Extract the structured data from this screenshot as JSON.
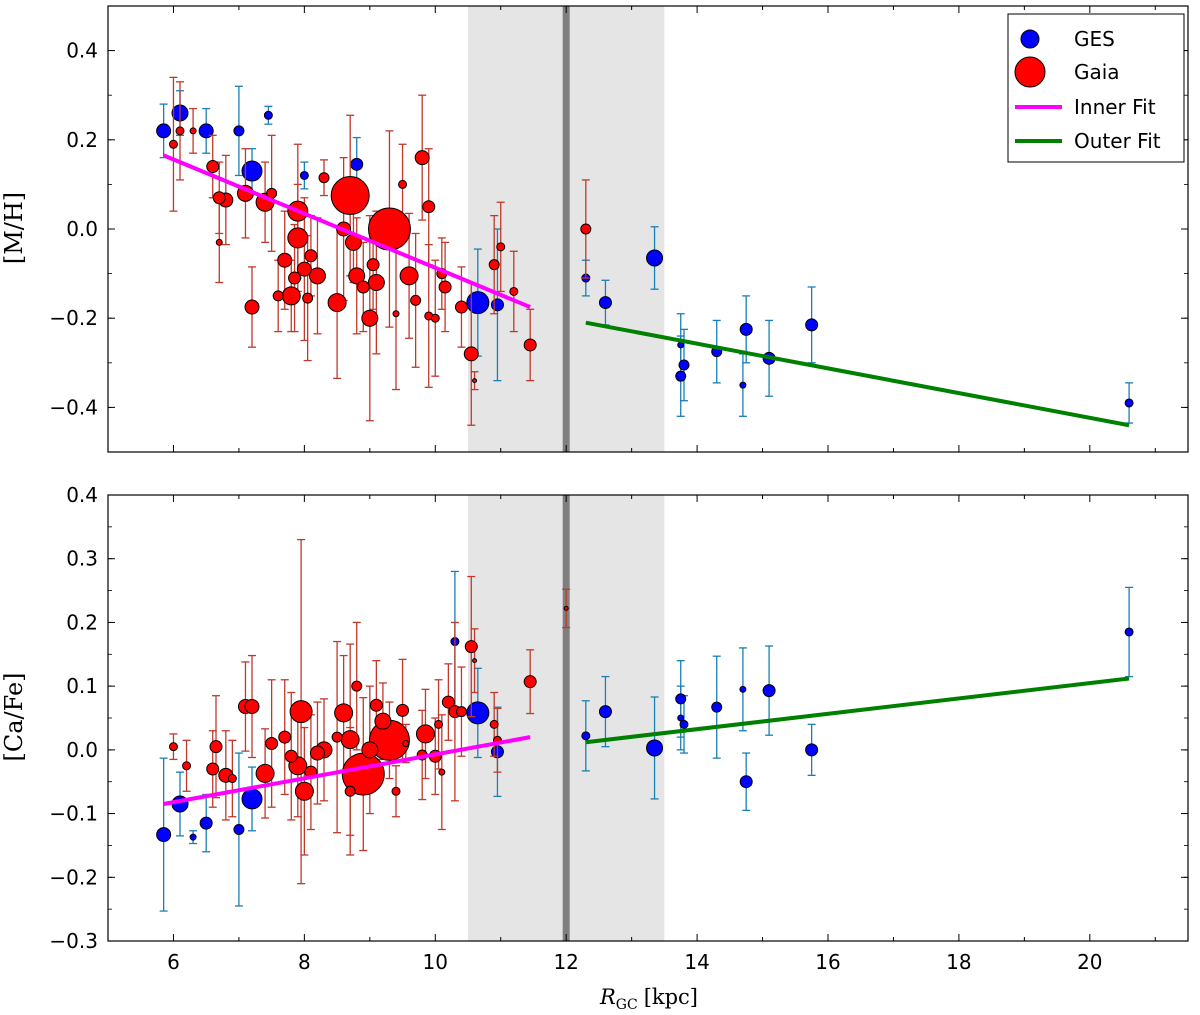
{
  "chart_data": {
    "type": "scatter",
    "xlabel": "R",
    "xlabel_subscript": "GC",
    "xlabel_unit": "[kpc]",
    "xlim": [
      5,
      21.5
    ],
    "xticks": [
      6,
      8,
      10,
      12,
      14,
      16,
      18,
      20
    ],
    "grid": false,
    "legend": {
      "placement": "top-right of upper panel",
      "entries": [
        {
          "label": "GES",
          "kind": "marker",
          "color": "#0000ff"
        },
        {
          "label": "Gaia",
          "kind": "marker",
          "color": "#ff0000"
        },
        {
          "label": "Inner Fit",
          "kind": "line",
          "color": "#ff00ff"
        },
        {
          "label": "Outer Fit",
          "kind": "line",
          "color": "#008000"
        }
      ]
    },
    "shaded_region": {
      "x": [
        10.5,
        13.5
      ],
      "color": "#e5e5e5"
    },
    "vertical_line": {
      "x": 12.0,
      "color": "#7f7f7f"
    },
    "panels": [
      {
        "ylabel": "[M/H]",
        "ylim": [
          -0.5,
          0.5
        ],
        "yticks": [
          -0.4,
          -0.2,
          0.0,
          0.2,
          0.4
        ],
        "ytick_labels": [
          "−0.4",
          "−0.2",
          "0.0",
          "0.2",
          "0.4"
        ],
        "inner_fit": {
          "x": [
            5.85,
            11.45
          ],
          "y": [
            0.165,
            -0.175
          ],
          "color": "#ff00ff"
        },
        "outer_fit": {
          "x": [
            12.3,
            20.6
          ],
          "y": [
            -0.21,
            -0.44
          ],
          "color": "#008000"
        },
        "series": [
          {
            "name": "GES",
            "color": "#0000ff",
            "errcolor": "#1a7fb5",
            "points": [
              [
                5.85,
                0.22,
                0.06,
                7
              ],
              [
                6.1,
                0.26,
                0.05,
                8
              ],
              [
                6.5,
                0.22,
                0.05,
                7
              ],
              [
                7.0,
                0.22,
                0.1,
                5
              ],
              [
                7.2,
                0.13,
                0.05,
                10
              ],
              [
                7.45,
                0.255,
                0.02,
                4
              ],
              [
                8.0,
                0.12,
                0.03,
                4
              ],
              [
                8.8,
                0.145,
                0.06,
                6
              ],
              [
                10.65,
                -0.165,
                0.12,
                11
              ],
              [
                10.95,
                -0.17,
                0.17,
                6
              ],
              [
                12.3,
                -0.11,
                0.04,
                4
              ],
              [
                12.6,
                -0.165,
                0.05,
                6
              ],
              [
                13.35,
                -0.065,
                0.07,
                8
              ],
              [
                13.75,
                -0.26,
                0.07,
                3
              ],
              [
                13.75,
                -0.33,
                0.09,
                5
              ],
              [
                13.8,
                -0.305,
                0.08,
                5
              ],
              [
                14.3,
                -0.275,
                0.07,
                5
              ],
              [
                14.7,
                -0.35,
                0.07,
                3
              ],
              [
                14.75,
                -0.225,
                0.075,
                6
              ],
              [
                15.1,
                -0.29,
                0.085,
                6
              ],
              [
                15.75,
                -0.215,
                0.085,
                6
              ],
              [
                20.6,
                -0.39,
                0.045,
                4
              ]
            ]
          },
          {
            "name": "Gaia",
            "color": "#ff0000",
            "errcolor": "#c0392b",
            "points": [
              [
                6.0,
                0.19,
                0.15,
                4
              ],
              [
                6.1,
                0.22,
                0.11,
                4
              ],
              [
                6.3,
                0.22,
                0.05,
                3
              ],
              [
                6.6,
                0.14,
                0.07,
                6
              ],
              [
                6.7,
                0.07,
                0.08,
                6
              ],
              [
                6.7,
                -0.03,
                0.09,
                3
              ],
              [
                6.8,
                0.065,
                0.1,
                7
              ],
              [
                7.1,
                0.08,
                0.1,
                8
              ],
              [
                7.2,
                -0.175,
                0.09,
                7
              ],
              [
                7.4,
                0.06,
                0.09,
                9
              ],
              [
                7.5,
                0.08,
                0.13,
                5
              ],
              [
                7.6,
                -0.15,
                0.08,
                5
              ],
              [
                7.7,
                -0.07,
                0.11,
                7
              ],
              [
                7.8,
                -0.15,
                0.08,
                9
              ],
              [
                7.85,
                -0.11,
                0.12,
                6
              ],
              [
                7.9,
                0.04,
                0.15,
                10
              ],
              [
                7.9,
                -0.02,
                0.12,
                10
              ],
              [
                8.0,
                -0.09,
                0.16,
                7
              ],
              [
                8.05,
                -0.155,
                0.14,
                5
              ],
              [
                8.1,
                -0.06,
                0.09,
                6
              ],
              [
                8.2,
                -0.105,
                0.13,
                8
              ],
              [
                8.3,
                0.115,
                0.04,
                5
              ],
              [
                8.5,
                -0.165,
                0.17,
                9
              ],
              [
                8.6,
                0.0,
                0.16,
                7
              ],
              [
                8.7,
                0.075,
                0.18,
                19
              ],
              [
                8.75,
                -0.03,
                0.09,
                8
              ],
              [
                8.8,
                -0.105,
                0.13,
                8
              ],
              [
                8.9,
                -0.13,
                0.1,
                6
              ],
              [
                9.0,
                -0.2,
                0.23,
                8
              ],
              [
                9.05,
                -0.08,
                0.1,
                6
              ],
              [
                9.1,
                -0.12,
                0.16,
                8
              ],
              [
                9.3,
                0.0,
                0.22,
                21
              ],
              [
                9.4,
                -0.19,
                0.17,
                3
              ],
              [
                9.5,
                0.1,
                0.09,
                4
              ],
              [
                9.6,
                -0.105,
                0.14,
                9
              ],
              [
                9.7,
                -0.16,
                0.15,
                5
              ],
              [
                9.8,
                0.16,
                0.14,
                7
              ],
              [
                9.9,
                0.05,
                0.13,
                6
              ],
              [
                9.9,
                -0.195,
                0.16,
                4
              ],
              [
                10.0,
                -0.2,
                0.13,
                4
              ],
              [
                10.1,
                -0.1,
                0.08,
                5
              ],
              [
                10.15,
                -0.13,
                0.1,
                6
              ],
              [
                10.4,
                -0.175,
                0.09,
                6
              ],
              [
                10.55,
                -0.28,
                0.16,
                7
              ],
              [
                10.6,
                -0.34,
                0.02,
                2
              ],
              [
                10.9,
                -0.08,
                0.11,
                5
              ],
              [
                11.0,
                -0.04,
                0.1,
                4
              ],
              [
                11.2,
                -0.14,
                0.09,
                4
              ],
              [
                11.45,
                -0.26,
                0.08,
                6
              ],
              [
                12.3,
                0.0,
                0.11,
                5
              ]
            ]
          }
        ]
      },
      {
        "ylabel": "[Ca/Fe]",
        "ylim": [
          -0.3,
          0.4
        ],
        "yticks": [
          -0.3,
          -0.2,
          -0.1,
          0.0,
          0.1,
          0.2,
          0.3,
          0.4
        ],
        "ytick_labels": [
          "−0.3",
          "−0.2",
          "−0.1",
          "0.0",
          "0.1",
          "0.2",
          "0.3",
          "0.4"
        ],
        "inner_fit": {
          "x": [
            5.85,
            11.45
          ],
          "y": [
            -0.085,
            0.02
          ],
          "color": "#ff00ff"
        },
        "outer_fit": {
          "x": [
            12.3,
            20.6
          ],
          "y": [
            0.012,
            0.112
          ],
          "color": "#008000"
        },
        "series": [
          {
            "name": "GES",
            "color": "#0000ff",
            "errcolor": "#1a7fb5",
            "points": [
              [
                5.85,
                -0.133,
                0.12,
                7
              ],
              [
                6.1,
                -0.085,
                0.05,
                8
              ],
              [
                6.3,
                -0.137,
                0.01,
                3
              ],
              [
                6.5,
                -0.115,
                0.045,
                6
              ],
              [
                7.0,
                -0.125,
                0.12,
                5
              ],
              [
                7.2,
                -0.077,
                0.05,
                10
              ],
              [
                10.3,
                0.17,
                0.11,
                4
              ],
              [
                10.65,
                0.058,
                0.07,
                11
              ],
              [
                10.95,
                -0.003,
                0.07,
                6
              ],
              [
                12.3,
                0.022,
                0.055,
                4
              ],
              [
                12.6,
                0.06,
                0.055,
                6
              ],
              [
                13.35,
                0.003,
                0.08,
                8
              ],
              [
                13.75,
                0.08,
                0.06,
                5
              ],
              [
                13.75,
                0.05,
                0.05,
                3
              ],
              [
                13.8,
                0.04,
                0.045,
                4
              ],
              [
                14.3,
                0.067,
                0.08,
                5
              ],
              [
                14.7,
                0.095,
                0.065,
                3
              ],
              [
                14.75,
                -0.05,
                0.045,
                6
              ],
              [
                15.1,
                0.093,
                0.07,
                6
              ],
              [
                15.75,
                0.0,
                0.04,
                6
              ],
              [
                20.6,
                0.185,
                0.07,
                4
              ]
            ]
          },
          {
            "name": "Gaia",
            "color": "#ff0000",
            "errcolor": "#c0392b",
            "points": [
              [
                6.0,
                0.005,
                0.02,
                4
              ],
              [
                6.2,
                -0.025,
                0.04,
                4
              ],
              [
                6.6,
                -0.03,
                0.06,
                6
              ],
              [
                6.65,
                0.005,
                0.08,
                6
              ],
              [
                6.8,
                -0.04,
                0.07,
                7
              ],
              [
                6.9,
                -0.045,
                0.06,
                4
              ],
              [
                7.1,
                0.068,
                0.07,
                7
              ],
              [
                7.2,
                0.068,
                0.08,
                7
              ],
              [
                7.4,
                -0.037,
                0.07,
                9
              ],
              [
                7.5,
                0.01,
                0.1,
                6
              ],
              [
                7.7,
                0.02,
                0.09,
                6
              ],
              [
                7.8,
                -0.01,
                0.1,
                6
              ],
              [
                7.9,
                -0.025,
                0.08,
                9
              ],
              [
                7.95,
                0.06,
                0.27,
                11
              ],
              [
                8.0,
                -0.065,
                0.1,
                9
              ],
              [
                8.1,
                -0.035,
                0.09,
                6
              ],
              [
                8.2,
                -0.005,
                0.08,
                7
              ],
              [
                8.3,
                0.0,
                0.08,
                8
              ],
              [
                8.5,
                0.02,
                0.15,
                5
              ],
              [
                8.6,
                0.058,
                0.09,
                9
              ],
              [
                8.7,
                0.016,
                0.15,
                9
              ],
              [
                8.7,
                -0.065,
                0.1,
                5
              ],
              [
                8.8,
                0.1,
                0.1,
                5
              ],
              [
                8.9,
                -0.038,
                0.12,
                21
              ],
              [
                9.0,
                0.0,
                0.1,
                8
              ],
              [
                9.1,
                0.07,
                0.07,
                6
              ],
              [
                9.2,
                0.045,
                0.06,
                8
              ],
              [
                9.3,
                0.015,
                0.06,
                20
              ],
              [
                9.4,
                -0.065,
                0.04,
                4
              ],
              [
                9.5,
                0.062,
                0.08,
                6
              ],
              [
                9.55,
                0.01,
                0.03,
                3
              ],
              [
                9.8,
                -0.008,
                0.07,
                5
              ],
              [
                9.85,
                0.025,
                0.07,
                9
              ],
              [
                10.0,
                -0.01,
                0.06,
                6
              ],
              [
                10.05,
                0.04,
                0.07,
                4
              ],
              [
                10.1,
                -0.035,
                0.09,
                3
              ],
              [
                10.2,
                0.075,
                0.06,
                6
              ],
              [
                10.3,
                0.06,
                0.14,
                6
              ],
              [
                10.4,
                0.06,
                0.07,
                5
              ],
              [
                10.55,
                0.162,
                0.11,
                6
              ],
              [
                10.6,
                0.14,
                0.05,
                2
              ],
              [
                10.9,
                0.04,
                0.05,
                4
              ],
              [
                10.95,
                0.015,
                0.05,
                4
              ],
              [
                11.45,
                0.107,
                0.05,
                6
              ],
              [
                12.0,
                0.222,
                0.03,
                2
              ]
            ]
          }
        ]
      }
    ]
  }
}
